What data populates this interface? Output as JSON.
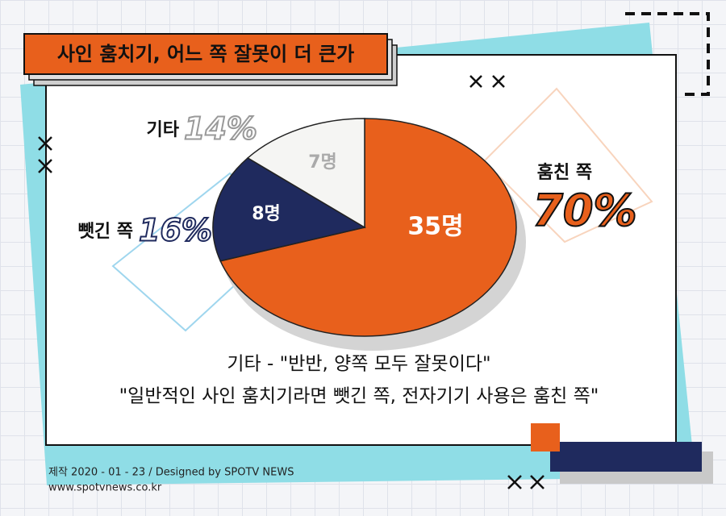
{
  "chart_data": {
    "type": "pie",
    "title": "사인 훔치기, 어느 쪽 잘못이 더 큰가",
    "categories": [
      "훔친 쪽",
      "뺏긴 쪽",
      "기타"
    ],
    "values": [
      35,
      8,
      7
    ],
    "value_labels": [
      "35명",
      "8명",
      "7명"
    ],
    "percents": [
      70,
      16,
      14
    ],
    "percent_labels": [
      "70%",
      "16%",
      "14%"
    ],
    "colors": [
      "#e8601c",
      "#1f2a5e",
      "#f5f5f3"
    ],
    "annotations": [
      "기타 - \"반반, 양쪽 모두 잘못이다\"",
      "\"일반적인 사인 훔치기라면 뺏긴 쪽, 전자기기 사용은 훔친 쪽\""
    ]
  },
  "footer": {
    "credit": "제작 2020 - 01 - 23 / Designed by SPOTV NEWS",
    "website": "www.spotvnews.co.kr"
  }
}
